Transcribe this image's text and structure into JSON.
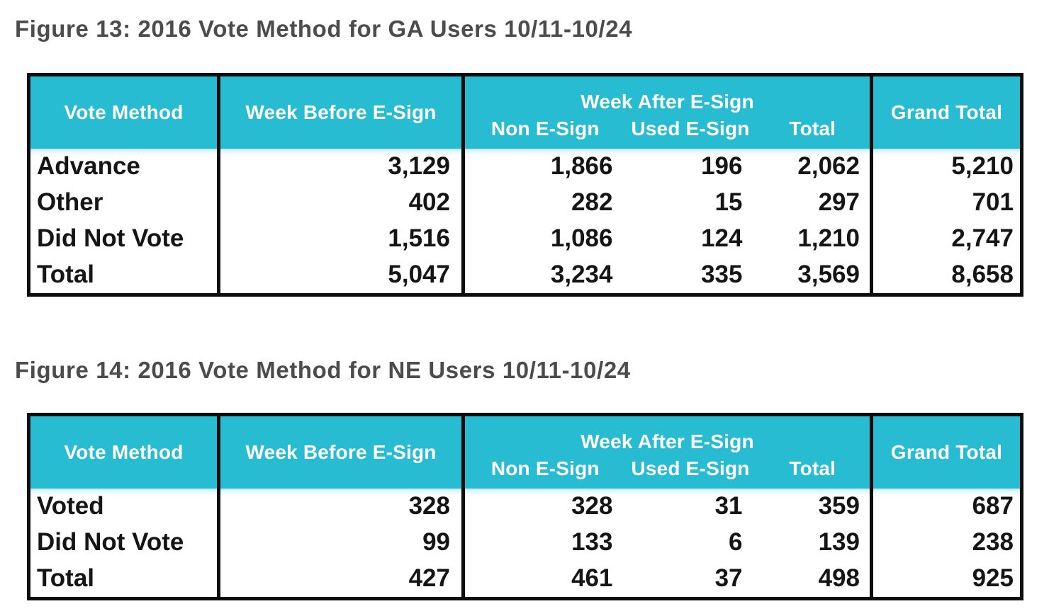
{
  "colors": {
    "header_teal": "#28bcd2",
    "header_text": "#ffffff",
    "table_border": "#0d0d0d",
    "title_gray": "#4c4c4e",
    "body_text": "#151515",
    "header_fade": "#bfe9f2",
    "page_background": "#ffffff"
  },
  "figures": [
    {
      "title": "Figure 13: 2016 Vote Method for GA Users 10/11-10/24",
      "table": {
        "header": {
          "vote_method": "Vote Method",
          "week_before": "Week Before E-Sign",
          "week_after_group": "Week After E-Sign",
          "non_esign": "Non E-Sign",
          "used_esign": "Used E-Sign",
          "total": "Total",
          "grand_total": "Grand Total"
        },
        "rows": [
          {
            "label": "Advance",
            "week_before": "3,129",
            "non_esign": "1,866",
            "used_esign": "196",
            "total": "2,062",
            "grand_total": "5,210"
          },
          {
            "label": "Other",
            "week_before": "402",
            "non_esign": "282",
            "used_esign": "15",
            "total": "297",
            "grand_total": "701"
          },
          {
            "label": "Did Not Vote",
            "week_before": "1,516",
            "non_esign": "1,086",
            "used_esign": "124",
            "total": "1,210",
            "grand_total": "2,747"
          },
          {
            "label": "Total",
            "week_before": "5,047",
            "non_esign": "3,234",
            "used_esign": "335",
            "total": "3,569",
            "grand_total": "8,658"
          }
        ]
      }
    },
    {
      "title": "Figure 14: 2016 Vote Method for NE Users 10/11-10/24",
      "table": {
        "header": {
          "vote_method": "Vote Method",
          "week_before": "Week Before E-Sign",
          "week_after_group": "Week After E-Sign",
          "non_esign": "Non E-Sign",
          "used_esign": "Used E-Sign",
          "total": "Total",
          "grand_total": "Grand Total"
        },
        "rows": [
          {
            "label": "Voted",
            "week_before": "328",
            "non_esign": "328",
            "used_esign": "31",
            "total": "359",
            "grand_total": "687"
          },
          {
            "label": "Did Not Vote",
            "week_before": "99",
            "non_esign": "133",
            "used_esign": "6",
            "total": "139",
            "grand_total": "238"
          },
          {
            "label": "Total",
            "week_before": "427",
            "non_esign": "461",
            "used_esign": "37",
            "total": "498",
            "grand_total": "925"
          }
        ]
      }
    }
  ],
  "chart_data": [
    {
      "type": "table",
      "title": "Figure 13: 2016 Vote Method for GA Users 10/11-10/24",
      "columns": [
        "Vote Method",
        "Week Before E-Sign",
        "Week After E-Sign: Non E-Sign",
        "Week After E-Sign: Used E-Sign",
        "Week After E-Sign: Total",
        "Grand Total"
      ],
      "rows": [
        [
          "Advance",
          3129,
          1866,
          196,
          2062,
          5210
        ],
        [
          "Other",
          402,
          282,
          15,
          297,
          701
        ],
        [
          "Did Not Vote",
          1516,
          1086,
          124,
          1210,
          2747
        ],
        [
          "Total",
          5047,
          3234,
          335,
          3569,
          8658
        ]
      ]
    },
    {
      "type": "table",
      "title": "Figure 14: 2016 Vote Method for NE Users 10/11-10/24",
      "columns": [
        "Vote Method",
        "Week Before E-Sign",
        "Week After E-Sign: Non E-Sign",
        "Week After E-Sign: Used E-Sign",
        "Week After E-Sign: Total",
        "Grand Total"
      ],
      "rows": [
        [
          "Voted",
          328,
          328,
          31,
          359,
          687
        ],
        [
          "Did Not Vote",
          99,
          133,
          6,
          139,
          238
        ],
        [
          "Total",
          427,
          461,
          37,
          498,
          925
        ]
      ]
    }
  ]
}
